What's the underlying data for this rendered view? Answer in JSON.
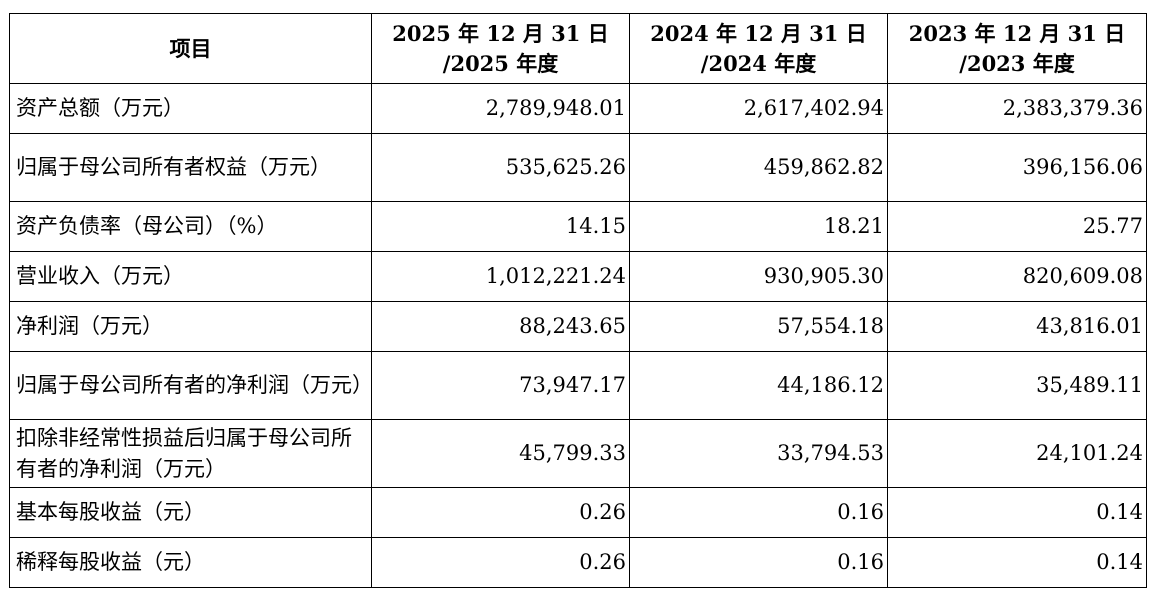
{
  "table": {
    "header": {
      "item": "项目",
      "columns": [
        {
          "line1": "2025 年 12 月 31 日",
          "line2": "/2025 年度"
        },
        {
          "line1": "2024 年 12 月 31 日",
          "line2": "/2024 年度"
        },
        {
          "line1": "2023 年 12 月 31 日",
          "line2": "/2023 年度"
        }
      ]
    },
    "rows": [
      {
        "label": "资产总额（万元）",
        "values": [
          "2,789,948.01",
          "2,617,402.94",
          "2,383,379.36"
        ]
      },
      {
        "label": "归属于母公司所有者权益（万元）",
        "values": [
          "535,625.26",
          "459,862.82",
          "396,156.06"
        ]
      },
      {
        "label": "资产负债率（母公司）（%）",
        "values": [
          "14.15",
          "18.21",
          "25.77"
        ]
      },
      {
        "label": "营业收入（万元）",
        "values": [
          "1,012,221.24",
          "930,905.30",
          "820,609.08"
        ]
      },
      {
        "label": "净利润（万元）",
        "values": [
          "88,243.65",
          "57,554.18",
          "43,816.01"
        ]
      },
      {
        "label": "归属于母公司所有者的净利润（万元）",
        "values": [
          "73,947.17",
          "44,186.12",
          "35,489.11"
        ]
      },
      {
        "label": "扣除非经常性损益后归属于母公司所有者的净利润（万元）",
        "values": [
          "45,799.33",
          "33,794.53",
          "24,101.24"
        ]
      },
      {
        "label": "基本每股收益（元）",
        "values": [
          "0.26",
          "0.16",
          "0.14"
        ]
      },
      {
        "label": "稀释每股收益（元）",
        "values": [
          "0.26",
          "0.16",
          "0.14"
        ]
      }
    ]
  }
}
